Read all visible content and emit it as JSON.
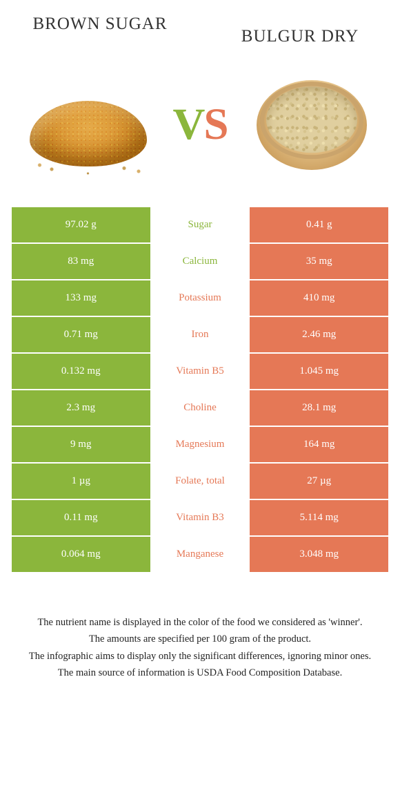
{
  "colors": {
    "left": "#8bb63c",
    "right": "#e57856",
    "nutrient_left_text": "#8bb63c",
    "nutrient_right_text": "#e57856",
    "vs_v": "#8bb63c",
    "vs_s": "#e57856"
  },
  "foods": {
    "left_title": "BROWN SUGAR",
    "right_title": "BULGUR DRY"
  },
  "vs": {
    "v": "V",
    "s": "S"
  },
  "rows": [
    {
      "left": "97.02 g",
      "nutrient": "Sugar",
      "right": "0.41 g",
      "winner": "left"
    },
    {
      "left": "83 mg",
      "nutrient": "Calcium",
      "right": "35 mg",
      "winner": "left"
    },
    {
      "left": "133 mg",
      "nutrient": "Potassium",
      "right": "410 mg",
      "winner": "right"
    },
    {
      "left": "0.71 mg",
      "nutrient": "Iron",
      "right": "2.46 mg",
      "winner": "right"
    },
    {
      "left": "0.132 mg",
      "nutrient": "Vitamin B5",
      "right": "1.045 mg",
      "winner": "right"
    },
    {
      "left": "2.3 mg",
      "nutrient": "Choline",
      "right": "28.1 mg",
      "winner": "right"
    },
    {
      "left": "9 mg",
      "nutrient": "Magnesium",
      "right": "164 mg",
      "winner": "right"
    },
    {
      "left": "1 µg",
      "nutrient": "Folate, total",
      "right": "27 µg",
      "winner": "right"
    },
    {
      "left": "0.11 mg",
      "nutrient": "Vitamin B3",
      "right": "5.114 mg",
      "winner": "right"
    },
    {
      "left": "0.064 mg",
      "nutrient": "Manganese",
      "right": "3.048 mg",
      "winner": "right"
    }
  ],
  "footnotes": [
    "The nutrient name is displayed in the color of the food we considered as 'winner'.",
    "The amounts are specified per 100 gram of the product.",
    "The infographic aims to display only the significant differences, ignoring minor ones.",
    "The main source of information is USDA Food Composition Database."
  ]
}
